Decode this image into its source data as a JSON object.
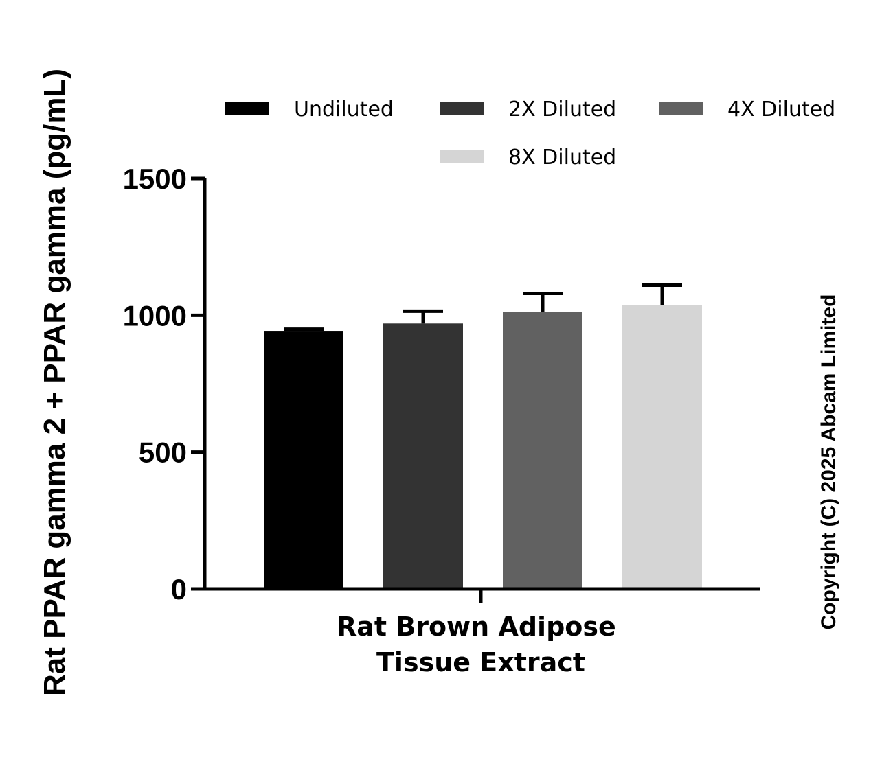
{
  "chart_data": {
    "type": "bar",
    "title": "",
    "categories": [
      "Rat Brown Adipose Tissue Extract"
    ],
    "xlabel_lines": [
      "Rat Brown Adipose",
      "Tissue Extract"
    ],
    "ylabel": "Rat PPAR gamma 2 + PPAR gamma (pg/mL)",
    "ylim": [
      0,
      1500
    ],
    "yticks": [
      0,
      500,
      1000,
      1500
    ],
    "series": [
      {
        "name": "Undiluted",
        "values": [
          943
        ],
        "error": [
          6
        ],
        "color": "#000000"
      },
      {
        "name": "2X Diluted",
        "values": [
          970
        ],
        "error": [
          45
        ],
        "color": "#333333"
      },
      {
        "name": "4X Diluted",
        "values": [
          1012
        ],
        "error": [
          68
        ],
        "color": "#616161"
      },
      {
        "name": "8X Diluted",
        "values": [
          1036
        ],
        "error": [
          74
        ],
        "color": "#d5d5d5"
      }
    ],
    "legend_position": "top",
    "grid": false
  },
  "copyright": "Copyright (C) 2025 Abcam Limited"
}
